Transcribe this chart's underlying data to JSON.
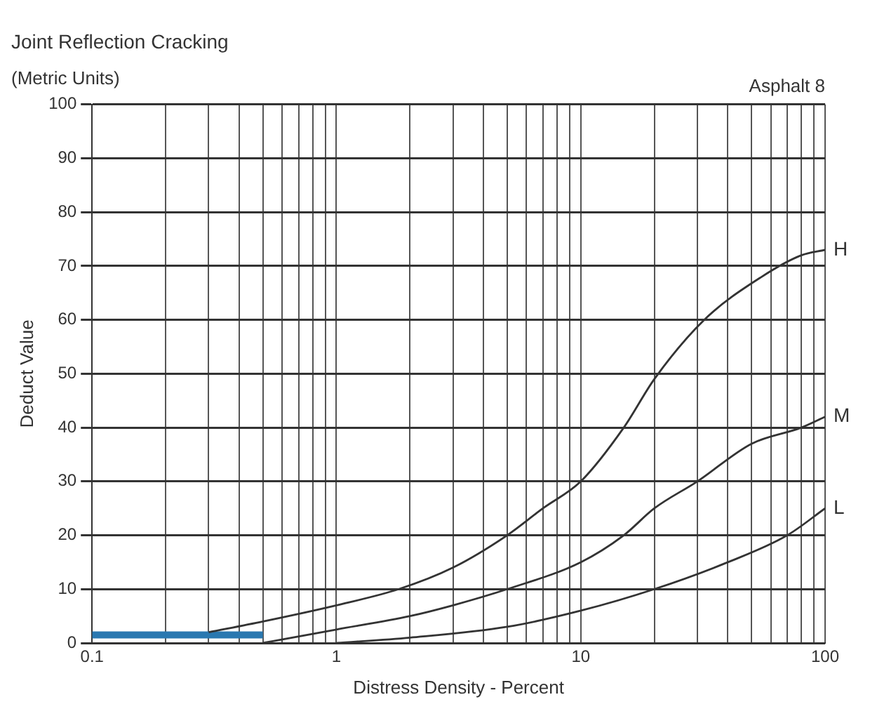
{
  "chart_data": {
    "type": "line",
    "title": "Joint Reflection Cracking",
    "subtitle": "(Metric Units)",
    "annotations": [
      "Asphalt 8"
    ],
    "xlabel": "Distress Density - Percent",
    "ylabel": "Deduct Value",
    "log": "x",
    "grid": true,
    "legend": false,
    "marker": "none",
    "line_style": "solid",
    "xlim": [
      0.1,
      100
    ],
    "ylim": [
      0,
      100
    ],
    "xticks": [
      0.1,
      {
        "value": 0.2,
        "label": null
      },
      {
        "value": 0.3,
        "label": null
      },
      {
        "value": 0.4,
        "label": null
      },
      {
        "value": 0.5,
        "label": null
      },
      {
        "value": 0.6,
        "label": null
      },
      {
        "value": 0.7,
        "label": null
      },
      {
        "value": 0.8,
        "label": null
      },
      {
        "value": 0.9,
        "label": null
      },
      1,
      {
        "value": 2,
        "label": null
      },
      {
        "value": 3,
        "label": null
      },
      {
        "value": 4,
        "label": null
      },
      {
        "value": 5,
        "label": null
      },
      {
        "value": 6,
        "label": null
      },
      {
        "value": 7,
        "label": null
      },
      {
        "value": 8,
        "label": null
      },
      {
        "value": 9,
        "label": null
      },
      10,
      {
        "value": 20,
        "label": null
      },
      {
        "value": 30,
        "label": null
      },
      {
        "value": 40,
        "label": null
      },
      {
        "value": 50,
        "label": null
      },
      {
        "value": 60,
        "label": null
      },
      {
        "value": 70,
        "label": null
      },
      {
        "value": 80,
        "label": null
      },
      {
        "value": 90,
        "label": null
      },
      100
    ],
    "yticks": [
      0,
      10,
      20,
      30,
      40,
      50,
      60,
      70,
      80,
      90,
      100
    ],
    "series": [
      {
        "name": "H",
        "color": "#333333",
        "x": [
          0.3,
          0.5,
          1,
          1.8,
          3,
          5,
          7,
          10,
          15,
          20,
          32,
          55,
          80,
          100
        ],
        "values": [
          2,
          4,
          7,
          10,
          14,
          20,
          25,
          30,
          40,
          49,
          60,
          68,
          72,
          73
        ]
      },
      {
        "name": "M",
        "color": "#333333",
        "x": [
          0.5,
          1,
          2,
          3,
          5,
          10,
          15,
          20,
          30,
          50,
          80,
          100
        ],
        "values": [
          0,
          2.5,
          5,
          7,
          10,
          15,
          20,
          25,
          30,
          37,
          40,
          42
        ]
      },
      {
        "name": "L",
        "color": "#333333",
        "x": [
          1,
          2,
          5,
          10,
          20,
          40,
          70,
          100
        ],
        "values": [
          0,
          1,
          3,
          6,
          10,
          15,
          20,
          25
        ]
      },
      {
        "color": "#2a78b0",
        "x": [
          0.1,
          0.5
        ],
        "values": [
          1.5,
          1.5
        ]
      }
    ]
  }
}
